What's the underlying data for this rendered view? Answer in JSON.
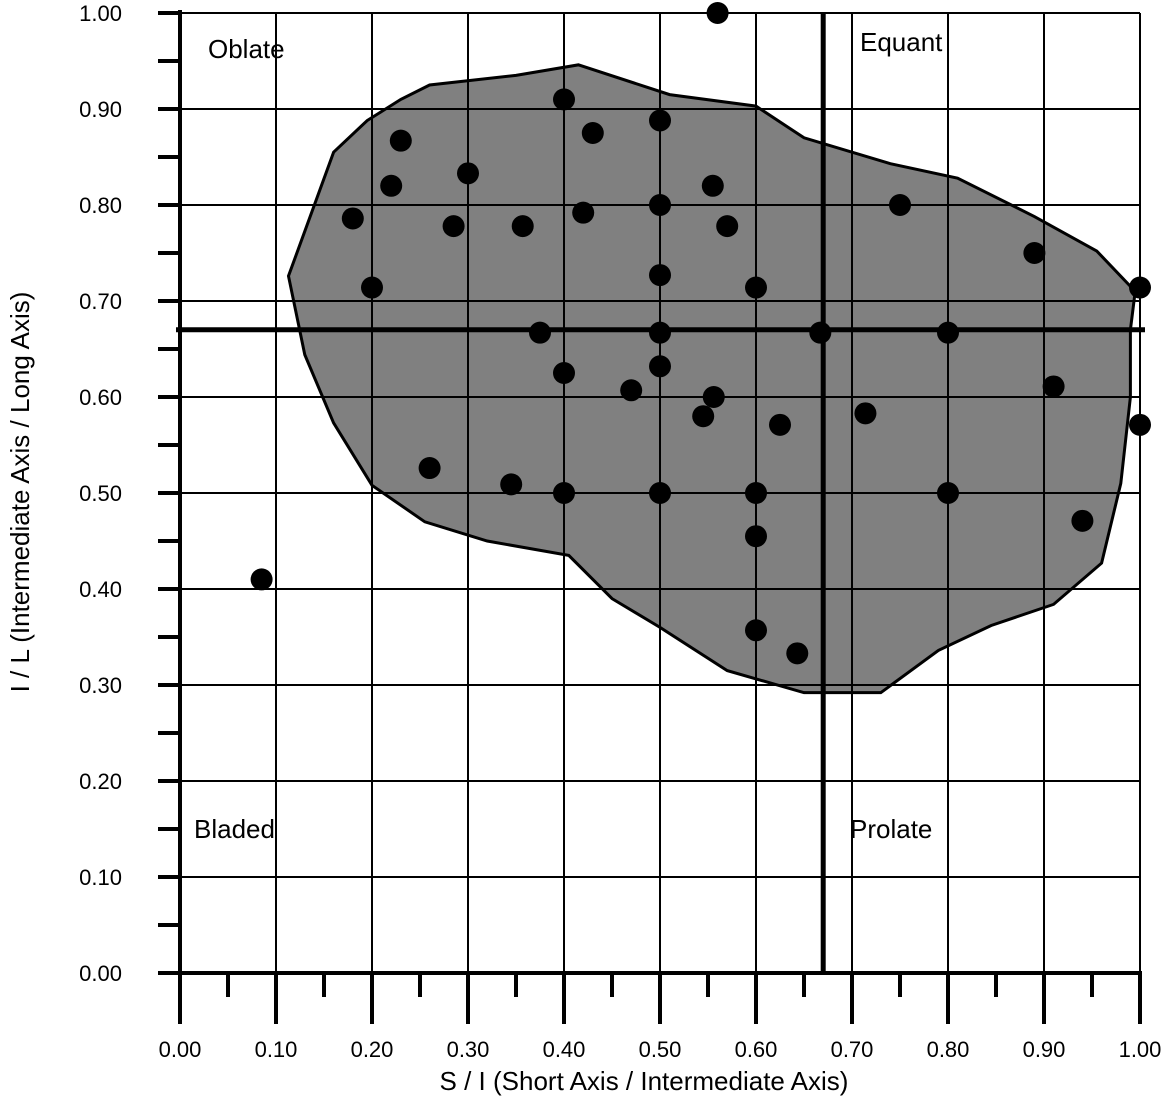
{
  "chart_data": {
    "type": "scatter",
    "title": "",
    "xlabel": "S / I (Short Axis / Intermediate Axis)",
    "ylabel": "I / L (Intermediate Axis / Long Axis)",
    "xlim": [
      0,
      1
    ],
    "ylim": [
      0,
      1
    ],
    "x_tick_labels": [
      "0.00",
      "0.10",
      "0.20",
      "0.30",
      "0.40",
      "0.50",
      "0.60",
      "0.70",
      "0.80",
      "0.90",
      "1.00"
    ],
    "y_tick_labels": [
      "0.00",
      "0.10",
      "0.20",
      "0.30",
      "0.40",
      "0.50",
      "0.60",
      "0.70",
      "0.80",
      "0.90",
      "1.00"
    ],
    "grid": true,
    "thresholds": {
      "x": 0.67,
      "y": 0.67
    },
    "quadrant_labels": {
      "oblate": "Oblate",
      "equant": "Equant",
      "bladed": "Bladed",
      "prolate": "Prolate"
    },
    "points": [
      {
        "x": 0.56,
        "y": 1.0
      },
      {
        "x": 0.4,
        "y": 0.91
      },
      {
        "x": 0.43,
        "y": 0.875
      },
      {
        "x": 0.5,
        "y": 0.888
      },
      {
        "x": 0.23,
        "y": 0.867
      },
      {
        "x": 0.3,
        "y": 0.833
      },
      {
        "x": 0.22,
        "y": 0.82
      },
      {
        "x": 0.555,
        "y": 0.82
      },
      {
        "x": 0.18,
        "y": 0.786
      },
      {
        "x": 0.42,
        "y": 0.792
      },
      {
        "x": 0.5,
        "y": 0.8
      },
      {
        "x": 0.75,
        "y": 0.8
      },
      {
        "x": 0.285,
        "y": 0.778
      },
      {
        "x": 0.357,
        "y": 0.778
      },
      {
        "x": 0.57,
        "y": 0.778
      },
      {
        "x": 0.89,
        "y": 0.75
      },
      {
        "x": 0.5,
        "y": 0.727
      },
      {
        "x": 0.2,
        "y": 0.714
      },
      {
        "x": 0.6,
        "y": 0.714
      },
      {
        "x": 1.0,
        "y": 0.714
      },
      {
        "x": 0.375,
        "y": 0.667
      },
      {
        "x": 0.5,
        "y": 0.667
      },
      {
        "x": 0.667,
        "y": 0.667
      },
      {
        "x": 0.8,
        "y": 0.667
      },
      {
        "x": 0.5,
        "y": 0.632
      },
      {
        "x": 0.4,
        "y": 0.625
      },
      {
        "x": 0.91,
        "y": 0.611
      },
      {
        "x": 0.47,
        "y": 0.607
      },
      {
        "x": 0.556,
        "y": 0.6
      },
      {
        "x": 0.714,
        "y": 0.583
      },
      {
        "x": 0.545,
        "y": 0.58
      },
      {
        "x": 0.625,
        "y": 0.571
      },
      {
        "x": 1.0,
        "y": 0.571
      },
      {
        "x": 0.26,
        "y": 0.526
      },
      {
        "x": 0.345,
        "y": 0.509
      },
      {
        "x": 0.4,
        "y": 0.5
      },
      {
        "x": 0.5,
        "y": 0.5
      },
      {
        "x": 0.6,
        "y": 0.5
      },
      {
        "x": 0.8,
        "y": 0.5
      },
      {
        "x": 0.94,
        "y": 0.471
      },
      {
        "x": 0.6,
        "y": 0.455
      },
      {
        "x": 0.085,
        "y": 0.41
      },
      {
        "x": 0.6,
        "y": 0.357
      },
      {
        "x": 0.643,
        "y": 0.333
      }
    ],
    "envelope_polygon": [
      [
        0.16,
        0.855
      ],
      [
        0.195,
        0.888
      ],
      [
        0.23,
        0.91
      ],
      [
        0.26,
        0.925
      ],
      [
        0.35,
        0.935
      ],
      [
        0.415,
        0.946
      ],
      [
        0.51,
        0.915
      ],
      [
        0.6,
        0.903
      ],
      [
        0.65,
        0.87
      ],
      [
        0.74,
        0.843
      ],
      [
        0.81,
        0.828
      ],
      [
        0.89,
        0.788
      ],
      [
        0.955,
        0.752
      ],
      [
        0.995,
        0.71
      ],
      [
        0.99,
        0.67
      ],
      [
        0.99,
        0.6
      ],
      [
        0.98,
        0.51
      ],
      [
        0.96,
        0.427
      ],
      [
        0.91,
        0.384
      ],
      [
        0.845,
        0.362
      ],
      [
        0.79,
        0.336
      ],
      [
        0.73,
        0.292
      ],
      [
        0.65,
        0.292
      ],
      [
        0.57,
        0.315
      ],
      [
        0.5,
        0.36
      ],
      [
        0.45,
        0.39
      ],
      [
        0.405,
        0.435
      ],
      [
        0.32,
        0.45
      ],
      [
        0.255,
        0.47
      ],
      [
        0.2,
        0.508
      ],
      [
        0.16,
        0.573
      ],
      [
        0.13,
        0.644
      ],
      [
        0.113,
        0.726
      ]
    ],
    "envelope_fill": "#808080"
  }
}
